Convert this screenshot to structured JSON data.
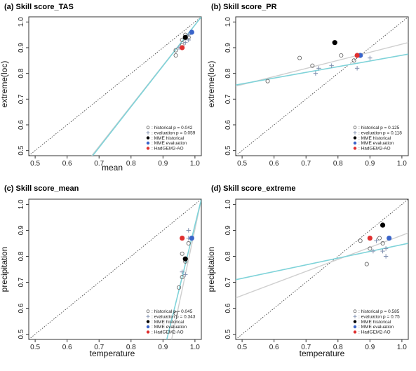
{
  "colors": {
    "historical": "#6b6b6b",
    "evaluation": "#7f8fae",
    "mme_historical": "#000000",
    "mme_evaluation": "#3a64c9",
    "hadgem": "#e03030",
    "fit_historical": "#cfcfcf",
    "fit_evaluation": "#7fd3d9",
    "identity": "#444444"
  },
  "chart_data": [
    {
      "type": "scatter",
      "title": "(a) Skill score_TAS",
      "xlabel": "mean",
      "ylabel": "extreme(loc)",
      "xlim": [
        0.48,
        1.02
      ],
      "ylim": [
        0.48,
        1.02
      ],
      "xticks": [
        "0.5",
        "0.6",
        "0.7",
        "0.8",
        "0.9",
        "1.0"
      ],
      "yticks": [
        "0.5",
        "0.6",
        "0.7",
        "0.8",
        "0.9",
        "1.0"
      ],
      "series": [
        {
          "name": ": historical p = 0.042",
          "marker": "circle-open",
          "points": [
            [
              0.94,
              0.87
            ],
            [
              0.94,
              0.89
            ],
            [
              0.96,
              0.91
            ],
            [
              0.96,
              0.93
            ],
            [
              0.97,
              0.95
            ],
            [
              0.98,
              0.94
            ]
          ]
        },
        {
          "name": ": evaluation p = 0.059",
          "marker": "plus",
          "points": [
            [
              0.95,
              0.9
            ],
            [
              0.97,
              0.92
            ],
            [
              0.98,
              0.93
            ],
            [
              0.98,
              0.95
            ]
          ]
        },
        {
          "name": ": MME historical",
          "marker": "filled-black",
          "points": [
            [
              0.97,
              0.94
            ]
          ]
        },
        {
          "name": ": MME evaluation",
          "marker": "filled-blue",
          "points": [
            [
              0.99,
              0.96
            ]
          ]
        },
        {
          "name": ": HadGEM2-AO",
          "marker": "filled-red",
          "points": [
            [
              0.96,
              0.9
            ]
          ]
        }
      ],
      "fit_lines": {
        "historical": [
          [
            0.677,
            0.48
          ],
          [
            1.02,
            1.02
          ]
        ],
        "evaluation": [
          [
            0.68,
            0.48
          ],
          [
            1.02,
            1.02
          ]
        ]
      }
    },
    {
      "type": "scatter",
      "title": "(b) Skill score_PR",
      "xlabel": "",
      "ylabel": "extreme(loc)",
      "xlim": [
        0.48,
        1.02
      ],
      "ylim": [
        0.48,
        1.02
      ],
      "xticks": [
        "0.5",
        "0.6",
        "0.7",
        "0.8",
        "0.9",
        "1.0"
      ],
      "yticks": [
        "0.5",
        "0.6",
        "0.7",
        "0.8",
        "0.9",
        "1.0"
      ],
      "series": [
        {
          "name": ": historical p = 0.125",
          "marker": "circle-open",
          "points": [
            [
              0.58,
              0.77
            ],
            [
              0.68,
              0.86
            ],
            [
              0.72,
              0.83
            ],
            [
              0.81,
              0.87
            ],
            [
              0.85,
              0.85
            ],
            [
              0.86,
              0.87
            ]
          ]
        },
        {
          "name": ": evaluation p = 0.118",
          "marker": "plus",
          "points": [
            [
              0.73,
              0.8
            ],
            [
              0.74,
              0.82
            ],
            [
              0.78,
              0.83
            ],
            [
              0.86,
              0.82
            ],
            [
              0.9,
              0.86
            ]
          ]
        },
        {
          "name": ": MME historical",
          "marker": "filled-black",
          "points": [
            [
              0.79,
              0.92
            ]
          ]
        },
        {
          "name": ": MME evaluation",
          "marker": "filled-blue",
          "points": [
            [
              0.87,
              0.87
            ]
          ]
        },
        {
          "name": ": HadGEM2-AO",
          "marker": "filled-red",
          "points": [
            [
              0.86,
              0.87
            ]
          ]
        }
      ],
      "fit_lines": {
        "historical": [
          [
            0.48,
            0.75
          ],
          [
            1.02,
            0.92
          ]
        ],
        "evaluation": [
          [
            0.48,
            0.755
          ],
          [
            1.02,
            0.875
          ]
        ]
      }
    },
    {
      "type": "scatter",
      "title": "(c) Skill score_mean",
      "xlabel": "temperature",
      "ylabel": "precipitation",
      "xlim": [
        0.48,
        1.02
      ],
      "ylim": [
        0.48,
        1.02
      ],
      "xticks": [
        "0.5",
        "0.6",
        "0.7",
        "0.8",
        "0.9",
        "1.0"
      ],
      "yticks": [
        "0.5",
        "0.6",
        "0.7",
        "0.8",
        "0.9",
        "1.0"
      ],
      "series": [
        {
          "name": ": historical p = 0.045",
          "marker": "circle-open",
          "points": [
            [
              0.94,
              0.58
            ],
            [
              0.95,
              0.68
            ],
            [
              0.96,
              0.72
            ],
            [
              0.96,
              0.81
            ],
            [
              0.97,
              0.78
            ],
            [
              0.98,
              0.85
            ]
          ]
        },
        {
          "name": ": evaluation p = 0.343",
          "marker": "plus",
          "points": [
            [
              0.96,
              0.74
            ],
            [
              0.97,
              0.73
            ],
            [
              0.98,
              0.87
            ],
            [
              0.98,
              0.9
            ]
          ]
        },
        {
          "name": ": MME historical",
          "marker": "filled-black",
          "points": [
            [
              0.97,
              0.79
            ]
          ]
        },
        {
          "name": ": MME evaluation",
          "marker": "filled-blue",
          "points": [
            [
              0.99,
              0.87
            ]
          ]
        },
        {
          "name": ": HadGEM2-AO",
          "marker": "filled-red",
          "points": [
            [
              0.96,
              0.87
            ]
          ]
        }
      ],
      "fit_lines": {
        "historical": [
          [
            0.927,
            0.48
          ],
          [
            1.02,
            1.02
          ]
        ],
        "evaluation": [
          [
            0.912,
            0.48
          ],
          [
            1.02,
            1.02
          ]
        ]
      }
    },
    {
      "type": "scatter",
      "title": "(d) Skill score_extreme",
      "xlabel": "temperature",
      "ylabel": "precipitation",
      "xlim": [
        0.48,
        1.02
      ],
      "ylim": [
        0.48,
        1.02
      ],
      "xticks": [
        "0.5",
        "0.6",
        "0.7",
        "0.8",
        "0.9",
        "1.0"
      ],
      "yticks": [
        "0.5",
        "0.6",
        "0.7",
        "0.8",
        "0.9",
        "1.0"
      ],
      "series": [
        {
          "name": ": historical p = 0.585",
          "marker": "circle-open",
          "points": [
            [
              0.87,
              0.86
            ],
            [
              0.89,
              0.77
            ],
            [
              0.9,
              0.83
            ],
            [
              0.93,
              0.87
            ],
            [
              0.94,
              0.85
            ]
          ]
        },
        {
          "name": ": evaluation p = 0.75",
          "marker": "plus",
          "points": [
            [
              0.91,
              0.82
            ],
            [
              0.94,
              0.82
            ],
            [
              0.95,
              0.83
            ],
            [
              0.95,
              0.8
            ],
            [
              0.92,
              0.86
            ]
          ]
        },
        {
          "name": ": MME historical",
          "marker": "filled-black",
          "points": [
            [
              0.94,
              0.92
            ]
          ]
        },
        {
          "name": ": MME evaluation",
          "marker": "filled-blue",
          "points": [
            [
              0.96,
              0.87
            ]
          ]
        },
        {
          "name": ": HadGEM2-AO",
          "marker": "filled-red",
          "points": [
            [
              0.9,
              0.87
            ]
          ]
        }
      ],
      "fit_lines": {
        "historical": [
          [
            0.48,
            0.64
          ],
          [
            1.02,
            0.89
          ]
        ],
        "evaluation": [
          [
            0.48,
            0.71
          ],
          [
            1.02,
            0.85
          ]
        ]
      }
    }
  ]
}
